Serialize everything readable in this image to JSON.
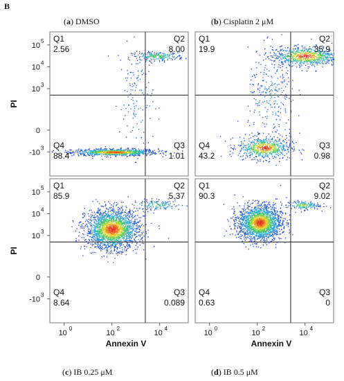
{
  "figure": {
    "letter": "B",
    "panels": [
      {
        "letter": "a",
        "label": "DMSO"
      },
      {
        "letter": "b",
        "label": "Cisplatin 2 μM"
      },
      {
        "letter": "c",
        "label": "IB 0.25 μM"
      },
      {
        "letter": "d",
        "label": "IB 0.5 μM"
      }
    ]
  },
  "chart_data": [
    {
      "type": "scatter",
      "title": "(a) DMSO",
      "xlabel": "",
      "ylabel": "PI",
      "x_ticks": [],
      "y_ticks": [
        {
          "base": "10",
          "exp": "5"
        },
        {
          "base": "10",
          "exp": "4"
        },
        {
          "base": "10",
          "exp": "3"
        },
        {
          "base": "0",
          "exp": ""
        },
        {
          "base": "-10",
          "exp": "3"
        }
      ],
      "quadrants": [
        {
          "name": "Q1",
          "value": "2.56"
        },
        {
          "name": "Q2",
          "value": "8.00"
        },
        {
          "name": "Q3",
          "value": "1.01"
        },
        {
          "name": "Q4",
          "value": "88.4"
        }
      ],
      "clusters": [
        {
          "x": 2.1,
          "y": 0.1,
          "sx": 0.9,
          "sy": 0.08,
          "n": 900,
          "dense": 1.0
        },
        {
          "x": 3.9,
          "y": 4.5,
          "sx": 0.55,
          "sy": 0.1,
          "n": 220,
          "dense": 0.6
        },
        {
          "x": 3.0,
          "y": 2.5,
          "sx": 0.35,
          "sy": 1.2,
          "n": 120,
          "dense": 0.15
        }
      ]
    },
    {
      "type": "scatter",
      "title": "(b) Cisplatin 2 μM",
      "xlabel": "",
      "ylabel": "",
      "x_ticks": [],
      "y_ticks": [],
      "quadrants": [
        {
          "name": "Q1",
          "value": "19.9"
        },
        {
          "name": "Q2",
          "value": "35.9"
        },
        {
          "name": "Q3",
          "value": "0.98"
        },
        {
          "name": "Q4",
          "value": "43.2"
        }
      ],
      "clusters": [
        {
          "x": 2.3,
          "y": 0.3,
          "sx": 0.55,
          "sy": 0.25,
          "n": 650,
          "dense": 1.0
        },
        {
          "x": 4.0,
          "y": 4.5,
          "sx": 0.7,
          "sy": 0.22,
          "n": 800,
          "dense": 1.0
        },
        {
          "x": 2.6,
          "y": 2.5,
          "sx": 0.5,
          "sy": 1.1,
          "n": 260,
          "dense": 0.2
        }
      ]
    },
    {
      "type": "scatter",
      "title": "(c) IB 0.25 μM",
      "xlabel": "Annexin V",
      "ylabel": "PI",
      "x_ticks": [
        {
          "base": "10",
          "exp": "0"
        },
        {
          "base": "10",
          "exp": "2"
        },
        {
          "base": "10",
          "exp": "4"
        }
      ],
      "y_ticks": [
        {
          "base": "10",
          "exp": "5"
        },
        {
          "base": "10",
          "exp": "4"
        },
        {
          "base": "10",
          "exp": "3"
        },
        {
          "base": "0",
          "exp": ""
        },
        {
          "base": "-10",
          "exp": "3"
        }
      ],
      "quadrants": [
        {
          "name": "Q1",
          "value": "85.9"
        },
        {
          "name": "Q2",
          "value": "5.37"
        },
        {
          "name": "Q3",
          "value": "0.089"
        },
        {
          "name": "Q4",
          "value": "8.64"
        }
      ],
      "clusters": [
        {
          "x": 2.0,
          "y": 3.3,
          "sx": 0.55,
          "sy": 0.45,
          "n": 2200,
          "dense": 1.0
        },
        {
          "x": 3.9,
          "y": 4.4,
          "sx": 0.5,
          "sy": 0.12,
          "n": 140,
          "dense": 0.5
        }
      ]
    },
    {
      "type": "scatter",
      "title": "(d) IB 0.5 μM",
      "xlabel": "Annexin V",
      "ylabel": "",
      "x_ticks": [
        {
          "base": "10",
          "exp": "0"
        },
        {
          "base": "10",
          "exp": "2"
        },
        {
          "base": "10",
          "exp": "4"
        }
      ],
      "y_ticks": [],
      "quadrants": [
        {
          "name": "Q1",
          "value": "90.3"
        },
        {
          "name": "Q2",
          "value": "9.02"
        },
        {
          "name": "Q3",
          "value": "0"
        },
        {
          "name": "Q4",
          "value": "0.63"
        }
      ],
      "clusters": [
        {
          "x": 2.1,
          "y": 3.6,
          "sx": 0.45,
          "sy": 0.4,
          "n": 2000,
          "dense": 1.0
        },
        {
          "x": 3.9,
          "y": 4.4,
          "sx": 0.35,
          "sy": 0.1,
          "n": 160,
          "dense": 0.7
        }
      ]
    }
  ]
}
